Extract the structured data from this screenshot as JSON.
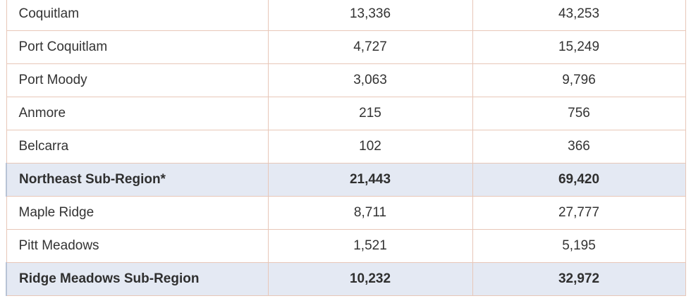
{
  "table": {
    "rows": [
      {
        "name": "Coquitlam",
        "col1": "13,336",
        "col2": "43,253",
        "subtotal": false
      },
      {
        "name": "Port Coquitlam",
        "col1": "4,727",
        "col2": "15,249",
        "subtotal": false
      },
      {
        "name": "Port Moody",
        "col1": "3,063",
        "col2": "9,796",
        "subtotal": false
      },
      {
        "name": "Anmore",
        "col1": "215",
        "col2": "756",
        "subtotal": false
      },
      {
        "name": "Belcarra",
        "col1": "102",
        "col2": "366",
        "subtotal": false
      },
      {
        "name": "Northeast Sub-Region*",
        "col1": "21,443",
        "col2": "69,420",
        "subtotal": true
      },
      {
        "name": "Maple Ridge",
        "col1": "8,711",
        "col2": "27,777",
        "subtotal": false
      },
      {
        "name": "Pitt Meadows",
        "col1": "1,521",
        "col2": "5,195",
        "subtotal": false
      },
      {
        "name": "Ridge Meadows Sub-Region",
        "col1": "10,232",
        "col2": "32,972",
        "subtotal": true
      }
    ]
  }
}
